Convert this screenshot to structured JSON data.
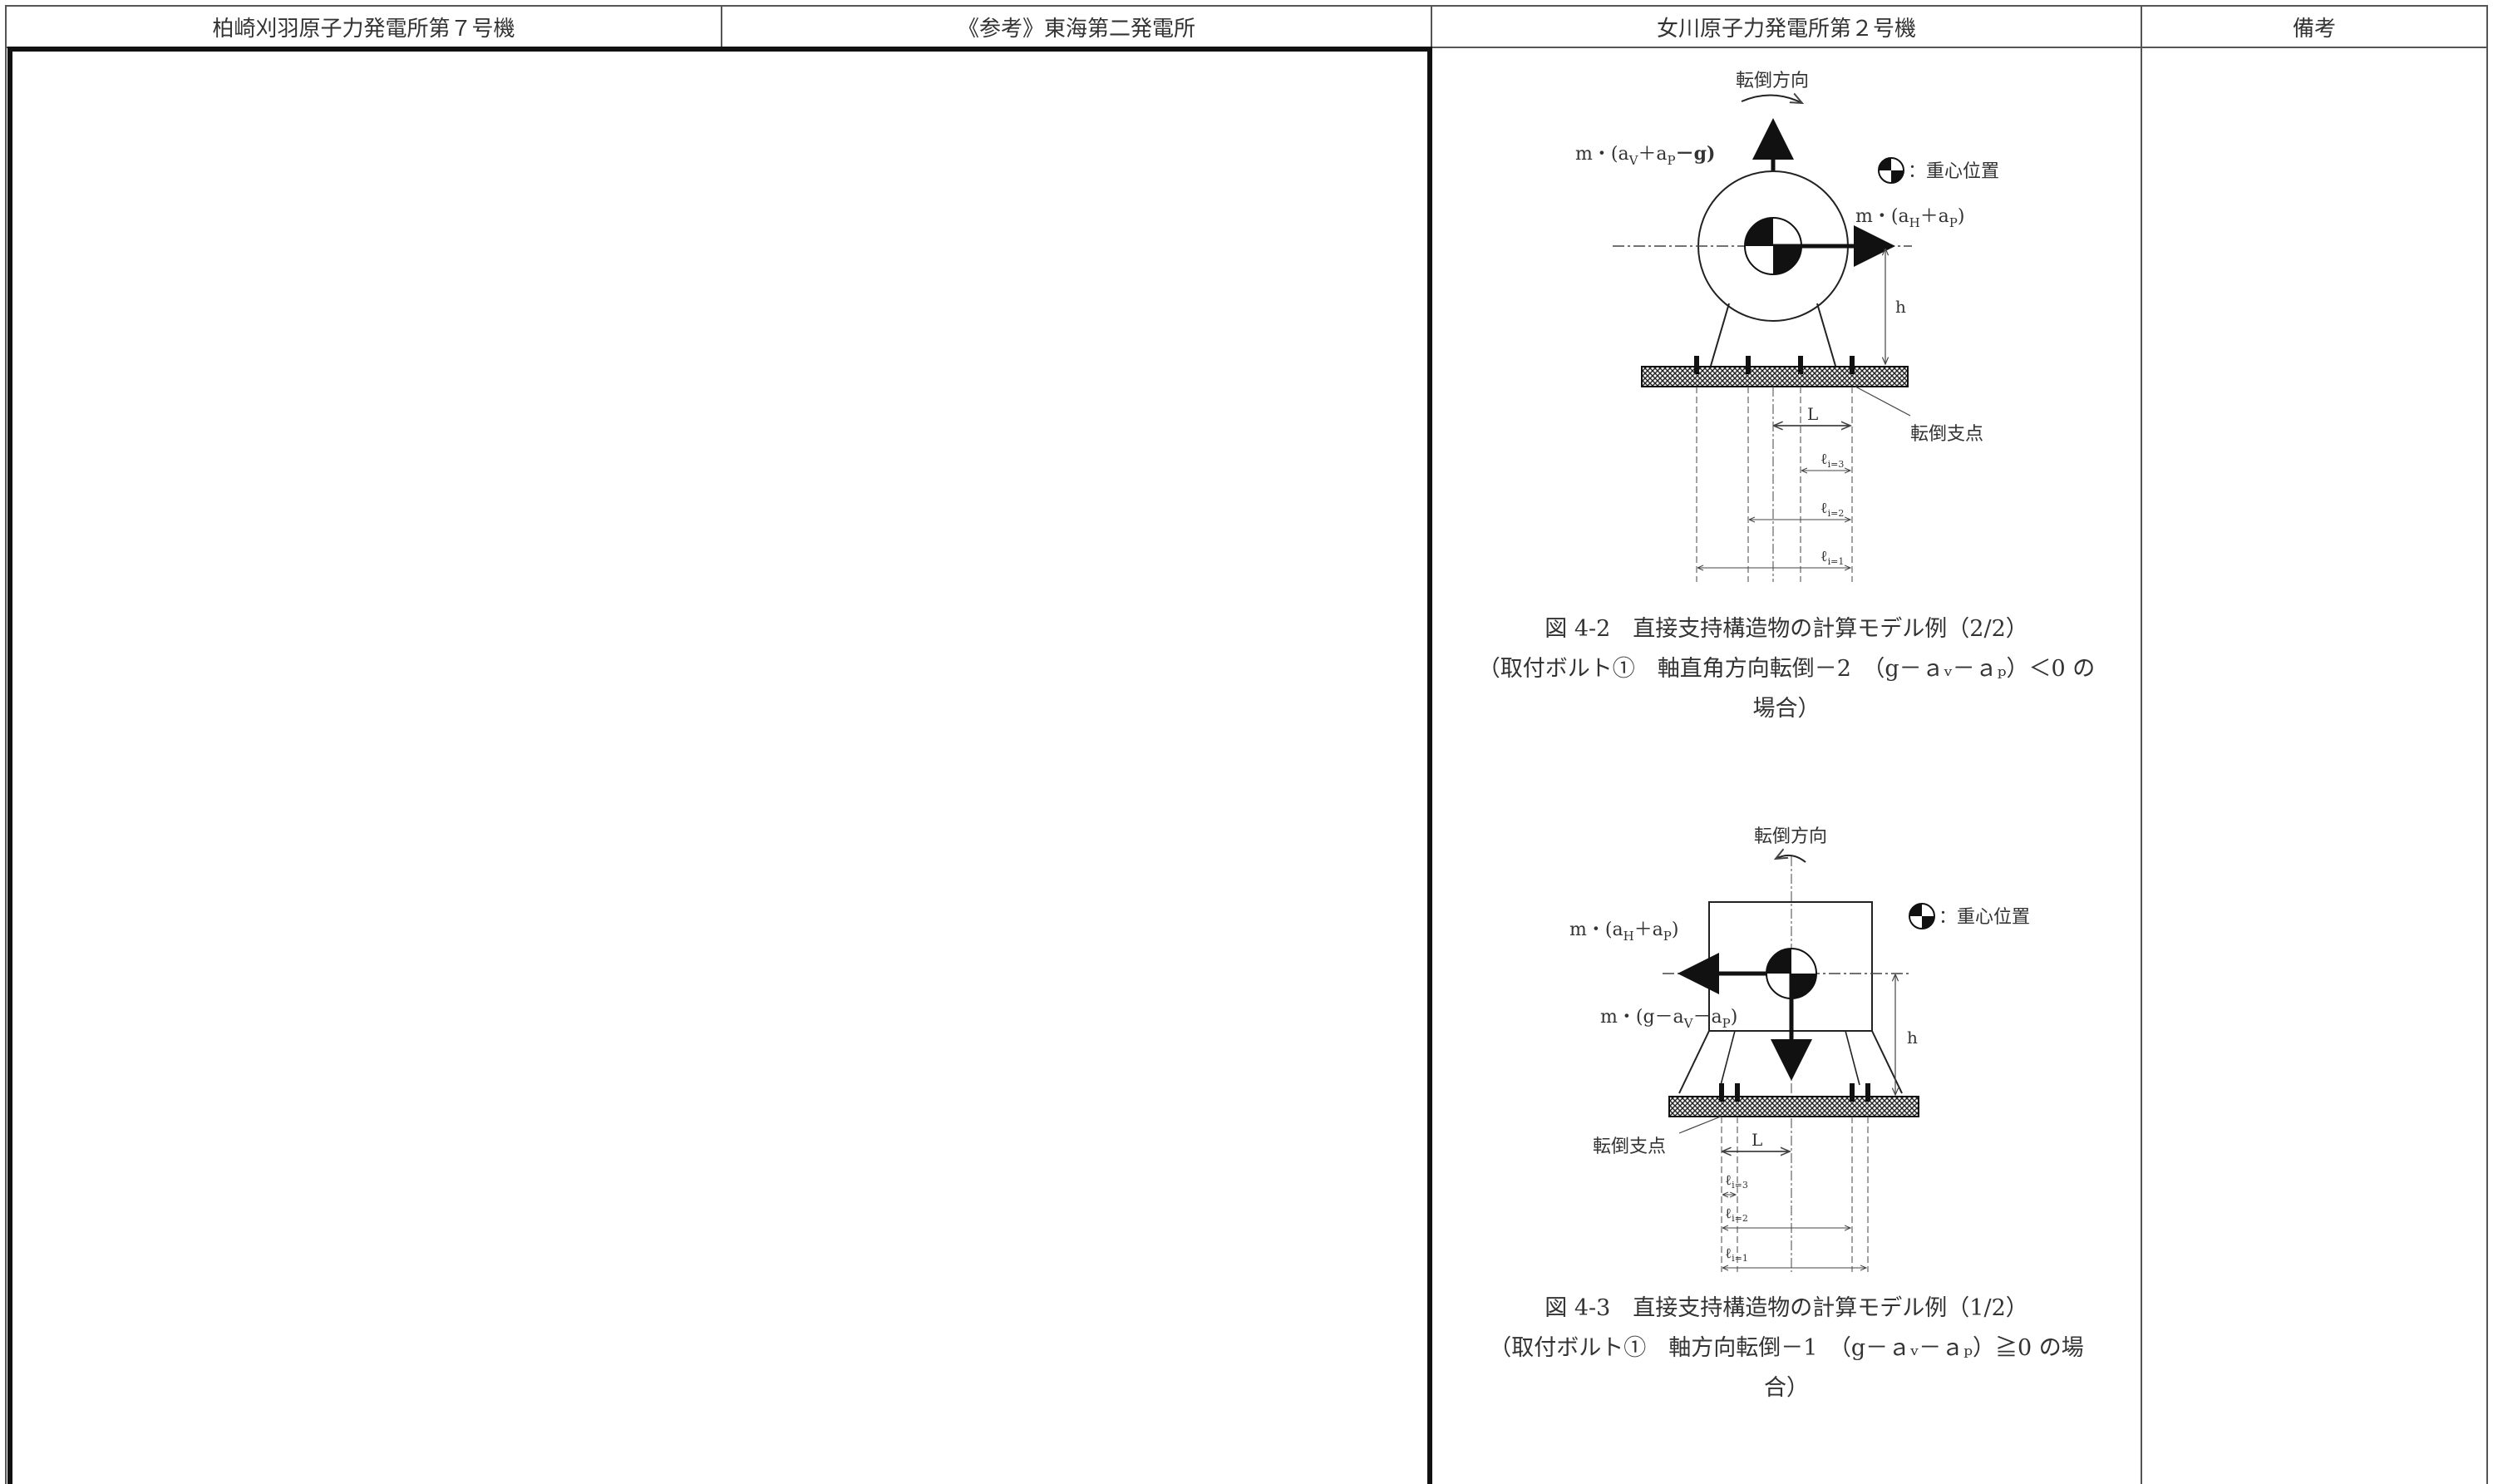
{
  "header": {
    "col1": "柏崎刈羽原子力発電所第７号機",
    "col2": "《参考》東海第二発電所",
    "col3": "女川原子力発電所第２号機",
    "col4": "備考"
  },
  "figure1": {
    "tipping_direction": "転倒方向",
    "force_vertical": "m・(a",
    "force_vertical_sub_v": "V",
    "force_vertical_plus": "＋a",
    "force_vertical_sub_p": "P",
    "force_vertical_tail": "－g)",
    "force_horizontal": "m・(a",
    "force_horizontal_sub_h": "H",
    "force_horizontal_plus": "＋a",
    "force_horizontal_sub_p": "P",
    "force_horizontal_tail": ")",
    "cog_legend": "：重心位置",
    "h_label": "h",
    "L_label": "L",
    "fulcrum_label": "転倒支点",
    "dim_i3": "ℓ",
    "dim_i3_sub": "i=3",
    "dim_i2": "ℓ",
    "dim_i2_sub": "i=2",
    "dim_i1": "ℓ",
    "dim_i1_sub": "i=1",
    "caption_line1": "図 4-2　直接支持構造物の計算モデル例（2/2）",
    "caption_line2": "（取付ボルト①　軸直角方向転倒－2　（g－ａᵥ－ａₚ）＜0 の",
    "caption_line3": "場合）"
  },
  "figure2": {
    "tipping_direction": "転倒方向",
    "force_horizontal": "m・(a",
    "force_horizontal_sub_h": "H",
    "force_horizontal_plus": "＋a",
    "force_horizontal_sub_p": "P",
    "force_horizontal_tail": ")",
    "force_vertical": "m・(g－a",
    "force_vertical_sub_v": "V",
    "force_vertical_minus": "－a",
    "force_vertical_sub_p": "P",
    "force_vertical_tail": ")",
    "cog_legend": "：重心位置",
    "h_label": "h",
    "L_label": "L",
    "fulcrum_label": "転倒支点",
    "dim_i3": "ℓ",
    "dim_i3_sub": "i=3",
    "dim_i2": "ℓ",
    "dim_i2_sub": "i=2",
    "dim_i1": "ℓ",
    "dim_i1_sub": "i=1",
    "caption_line1": "図 4-3　直接支持構造物の計算モデル例（1/2）",
    "caption_line2": "（取付ボルト①　軸方向転倒－1　（g－ａᵥ－ａₚ）≧0 の場",
    "caption_line3": "合）"
  }
}
